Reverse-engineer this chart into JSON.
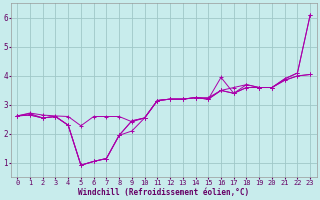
{
  "xlabel": "Windchill (Refroidissement éolien,°C)",
  "bg_color": "#c8ecec",
  "grid_color": "#a0c8c8",
  "line_color": "#aa00aa",
  "tick_color": "#660066",
  "xlim": [
    -0.5,
    23.5
  ],
  "ylim": [
    0.5,
    6.5
  ],
  "xticks": [
    0,
    1,
    2,
    3,
    4,
    5,
    6,
    7,
    8,
    9,
    10,
    11,
    12,
    13,
    14,
    15,
    16,
    17,
    18,
    19,
    20,
    21,
    22,
    23
  ],
  "yticks": [
    1,
    2,
    3,
    4,
    5,
    6
  ],
  "series": [
    [
      2.62,
      2.72,
      2.65,
      2.62,
      2.6,
      2.28,
      2.6,
      2.6,
      2.6,
      2.42,
      2.55,
      3.15,
      3.2,
      3.2,
      3.25,
      3.25,
      3.5,
      3.6,
      3.7,
      3.6,
      3.6,
      3.9,
      4.1,
      6.1
    ],
    [
      2.62,
      2.7,
      2.55,
      2.6,
      2.3,
      0.92,
      1.05,
      1.15,
      1.95,
      2.1,
      2.55,
      3.15,
      3.2,
      3.2,
      3.25,
      3.2,
      3.95,
      3.4,
      3.7,
      3.6,
      3.6,
      3.9,
      4.1,
      6.1
    ],
    [
      2.62,
      2.65,
      2.55,
      2.6,
      2.3,
      0.92,
      1.05,
      1.15,
      1.95,
      2.45,
      2.55,
      3.15,
      3.2,
      3.2,
      3.25,
      3.2,
      3.5,
      3.4,
      3.6,
      3.6,
      3.6,
      3.85,
      4.0,
      4.05
    ],
    [
      2.62,
      2.65,
      2.55,
      2.6,
      2.3,
      0.92,
      1.05,
      1.15,
      1.95,
      2.45,
      2.55,
      3.15,
      3.2,
      3.2,
      3.25,
      3.2,
      3.5,
      3.4,
      3.6,
      3.6,
      3.6,
      3.85,
      4.0,
      4.05
    ]
  ],
  "label_fontsize": 5.2,
  "xlabel_fontsize": 5.5,
  "tick_fontsize": 5.0,
  "linewidth": 0.7,
  "markersize": 2.5
}
